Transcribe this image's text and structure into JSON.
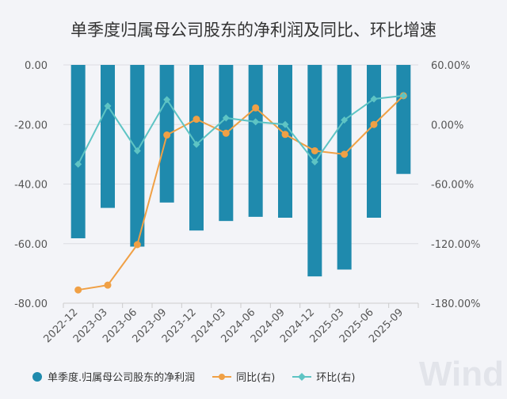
{
  "chart_data": {
    "type": "bar+line",
    "title": "单季度归属母公司股东的净利润及同比、环比增速",
    "categories": [
      "2022-12",
      "2023-03",
      "2023-06",
      "2023-09",
      "2023-12",
      "2024-03",
      "2024-06",
      "2024-09",
      "2024-12",
      "2025-03",
      "2025-06",
      "2025-09"
    ],
    "left_axis": {
      "ylim": [
        -80,
        0
      ],
      "ticks": [
        "0.00",
        "-20.00",
        "-40.00",
        "-60.00",
        "-80.00"
      ],
      "tick_values": [
        0,
        -20,
        -40,
        -60,
        -80
      ]
    },
    "right_axis": {
      "ylim": [
        -180,
        60
      ],
      "ticks": [
        "60.00%",
        "0.00%",
        "-60.00%",
        "-120.00%",
        "-180.00%"
      ],
      "tick_values": [
        60,
        0,
        -60,
        -120,
        -180
      ]
    },
    "series": [
      {
        "name": "单季度.归属母公司股东的净利润",
        "type": "bar",
        "axis": "left",
        "color": "#1f8aad",
        "values": [
          -58.2,
          -48.0,
          -61.0,
          -46.2,
          -55.6,
          -52.4,
          -51.0,
          -51.3,
          -71.0,
          -68.7,
          -51.3,
          -36.6
        ]
      },
      {
        "name": "同比(右)",
        "type": "line",
        "axis": "right",
        "color": "#f0a045",
        "marker": "circle",
        "values": [
          -166.6,
          -161.8,
          -121.0,
          -10.6,
          5.3,
          -8.8,
          16.7,
          -10.0,
          -26.5,
          -30.0,
          0.0,
          29.0
        ]
      },
      {
        "name": "环比(右)",
        "type": "line",
        "axis": "right",
        "color": "#5ec4c4",
        "marker": "diamond",
        "values": [
          -40.0,
          18.6,
          -26.5,
          25.0,
          -20.0,
          6.6,
          2.7,
          0.0,
          -37.7,
          4.5,
          25.7,
          29.0
        ]
      }
    ],
    "grid": true,
    "legend": "bottom"
  },
  "watermark": "Wind"
}
